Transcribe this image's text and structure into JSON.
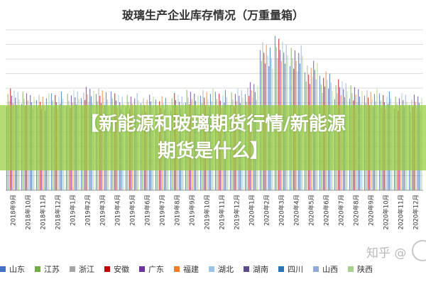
{
  "title": "玻璃生产企业库存情况（万重量箱）",
  "banner_line1": "【新能源和玻璃期货行情/新能源",
  "banner_line2": "期货是什么】",
  "watermark": "知乎 @",
  "chart_data": {
    "type": "bar",
    "title": "玻璃生产企业库存情况（万重量箱）",
    "xlabel": "",
    "ylabel": "",
    "categories": [
      "2018年9月",
      "2018年10月",
      "2018年11月",
      "2018年12月",
      "2019年1月",
      "2019年2月",
      "2019年3月",
      "2019年4月",
      "2019年5月",
      "2019年6月",
      "2019年7月",
      "2019年8月",
      "2019年9月",
      "2019年10月",
      "2019年11月",
      "2019年12月",
      "2020年1月",
      "2020年2月",
      "2020年3月",
      "2020年4月",
      "2020年5月",
      "2020年6月",
      "2020年7月",
      "2020年8月",
      "2020年9月",
      "2020年10月",
      "2020年11月",
      "2020年12月"
    ],
    "series": [
      {
        "name": "山东",
        "color": "#4472c4"
      },
      {
        "name": "江苏",
        "color": "#70ad47"
      },
      {
        "name": "浙江",
        "color": "#a5a5a5"
      },
      {
        "name": "安徽",
        "color": "#c00000"
      },
      {
        "name": "广东",
        "color": "#7030a0"
      },
      {
        "name": "福建",
        "color": "#ed7d31"
      },
      {
        "name": "湖北",
        "color": "#9dc3e6"
      },
      {
        "name": "湖南",
        "color": "#5b4b8a"
      },
      {
        "name": "四川",
        "color": "#2e75b6"
      },
      {
        "name": "山西",
        "color": "#8faadc"
      },
      {
        "name": "陕西",
        "color": "#a9d18e"
      }
    ],
    "totals": [
      3300,
      3200,
      3150,
      3200,
      3250,
      3350,
      3300,
      3200,
      3150,
      3100,
      3050,
      3150,
      3250,
      3300,
      3250,
      3300,
      3500,
      4800,
      5000,
      4700,
      4200,
      3850,
      3600,
      3400,
      3300,
      3200,
      3150,
      3100
    ],
    "ylim": [
      0,
      5200
    ],
    "grid": true,
    "legend": "bottom"
  }
}
